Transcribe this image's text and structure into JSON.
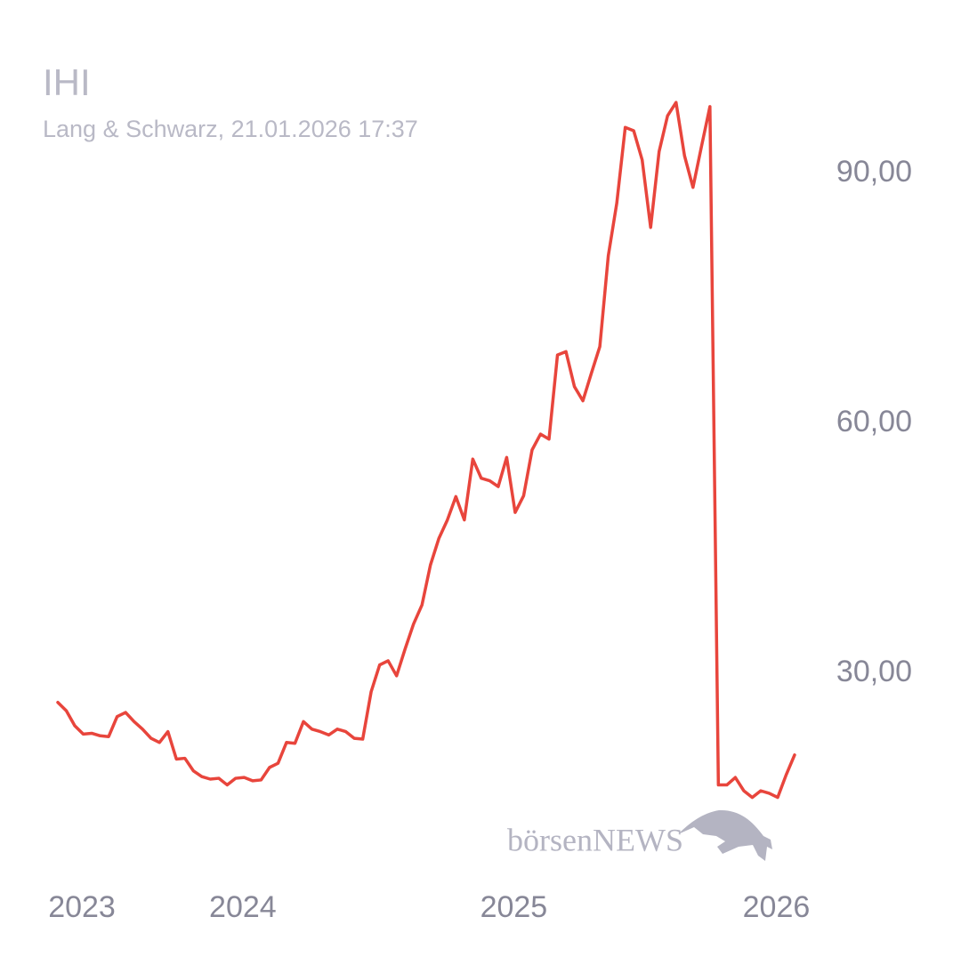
{
  "chart_data": {
    "type": "line",
    "title": "IHI",
    "subtitle": "Lang & Schwarz, 21.01.2026 17:37",
    "watermark": "börsenNEWS",
    "categories": [
      null,
      null,
      "2023",
      null,
      null,
      null,
      null,
      null,
      null,
      null,
      null,
      null,
      null,
      null,
      null,
      null,
      null,
      null,
      null,
      null,
      null,
      "2024",
      null,
      null,
      null,
      null,
      null,
      null,
      null,
      null,
      null,
      null,
      null,
      null,
      null,
      null,
      null,
      null,
      null,
      null,
      null,
      null,
      null,
      null,
      null,
      null,
      null,
      null,
      null,
      null,
      null,
      null,
      null,
      "2025",
      null,
      null,
      null,
      null,
      null,
      null,
      null,
      null,
      null,
      null,
      null,
      null,
      null,
      null,
      null,
      null,
      null,
      null,
      null,
      null,
      null,
      null,
      null,
      null,
      null,
      null,
      null,
      null,
      null,
      null,
      "2026",
      null,
      null,
      null
    ],
    "series": [
      {
        "name": "IHI",
        "color": "#e8453c",
        "values": [
          26.5,
          25.5,
          23.7,
          22.7,
          22.8,
          22.5,
          22.4,
          24.8,
          25.3,
          24.2,
          23.3,
          22.2,
          21.7,
          23.0,
          19.7,
          19.8,
          18.3,
          17.6,
          17.3,
          17.4,
          16.6,
          17.4,
          17.5,
          17.1,
          17.2,
          18.7,
          19.2,
          21.7,
          21.6,
          24.2,
          23.3,
          23.0,
          22.6,
          23.3,
          23.0,
          22.2,
          22.1,
          27.8,
          31.0,
          31.5,
          29.7,
          32.9,
          35.9,
          38.2,
          43.0,
          46.2,
          48.4,
          51.2,
          48.4,
          55.7,
          53.4,
          53.1,
          52.4,
          55.9,
          49.3,
          51.3,
          56.8,
          58.7,
          58.1,
          68.2,
          68.6,
          64.4,
          62.7,
          66.0,
          69.2,
          80.1,
          86.4,
          95.5,
          95.1,
          91.6,
          83.5,
          92.6,
          96.9,
          98.5,
          92.1,
          88.3,
          93.2,
          98.0,
          16.6,
          16.6,
          17.5,
          15.9,
          15.1,
          15.9,
          15.6,
          15.1,
          17.8,
          20.2
        ]
      }
    ],
    "ylim": [
      10,
      100
    ],
    "yticks": [
      {
        "value": 30,
        "label": "30,00"
      },
      {
        "value": 60,
        "label": "60,00"
      },
      {
        "value": 90,
        "label": "90,00"
      }
    ],
    "grid": false
  }
}
